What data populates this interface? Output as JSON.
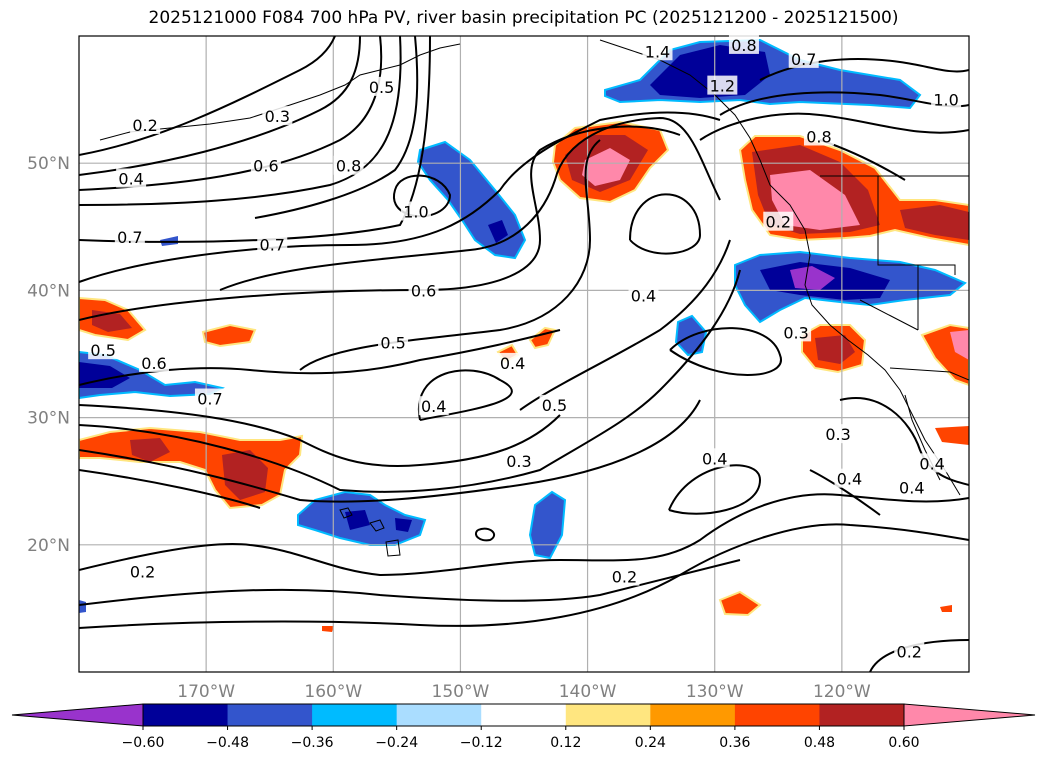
{
  "title": "2025121000 F084 700 hPa PV, river basin precipitation PC (2025121200 - 2025121500)",
  "map": {
    "lon_range": [
      -180,
      -110
    ],
    "lat_range": [
      10,
      60
    ],
    "lat_ticks": [
      {
        "value": 50,
        "label": "50°N"
      },
      {
        "value": 40,
        "label": "40°N"
      },
      {
        "value": 30,
        "label": "30°N"
      },
      {
        "value": 20,
        "label": "20°N"
      }
    ],
    "lon_ticks": [
      {
        "value": -170,
        "label": "170°W"
      },
      {
        "value": -160,
        "label": "160°W"
      },
      {
        "value": -150,
        "label": "150°W"
      },
      {
        "value": -140,
        "label": "140°W"
      },
      {
        "value": -130,
        "label": "130°W"
      },
      {
        "value": -120,
        "label": "120°W"
      }
    ],
    "gridlines": true
  },
  "colorbar": {
    "ticks": [
      "−0.60",
      "−0.48",
      "−0.36",
      "−0.24",
      "−0.12",
      "0.12",
      "0.24",
      "0.36",
      "0.48",
      "0.60"
    ],
    "colors": [
      "#9933cc",
      "#000099",
      "#3355cc",
      "#00bbff",
      "#aaddff",
      "#ffffff",
      "#ffe680",
      "#ff9900",
      "#ff4400",
      "#b22222",
      "#ff88aa"
    ],
    "extend": "both"
  },
  "fill_colors": {
    "purple": "#9933cc",
    "navy": "#000099",
    "blue": "#3355cc",
    "cyan": "#00bbff",
    "lightblue": "#aaddff",
    "yellow": "#ffe680",
    "orange": "#ff9900",
    "redorange": "#ff4400",
    "firebrick": "#b22222",
    "pink": "#ff88aa"
  },
  "contour_labels": [
    {
      "text": "1.4",
      "lon": -134.5,
      "lat": 58.8
    },
    {
      "text": "1.2",
      "lon": -129.4,
      "lat": 56.1
    },
    {
      "text": "0.8",
      "lon": -127.7,
      "lat": 59.3
    },
    {
      "text": "0.7",
      "lon": -123.0,
      "lat": 58.2
    },
    {
      "text": "1.0",
      "lon": -111.8,
      "lat": 55.0
    },
    {
      "text": "0.8",
      "lon": -121.8,
      "lat": 52.1
    },
    {
      "text": "0.5",
      "lon": -156.2,
      "lat": 56.0
    },
    {
      "text": "0.3",
      "lon": -164.4,
      "lat": 53.7
    },
    {
      "text": "0.2",
      "lon": -174.8,
      "lat": 53.0
    },
    {
      "text": "0.6",
      "lon": -165.3,
      "lat": 49.8
    },
    {
      "text": "0.8",
      "lon": -158.8,
      "lat": 49.8
    },
    {
      "text": "0.4",
      "lon": -175.9,
      "lat": 48.8
    },
    {
      "text": "1.0",
      "lon": -153.5,
      "lat": 46.2
    },
    {
      "text": "0.7",
      "lon": -176.0,
      "lat": 44.2
    },
    {
      "text": "0.7",
      "lon": -164.8,
      "lat": 43.6
    },
    {
      "text": "0.2",
      "lon": -125.0,
      "lat": 45.4
    },
    {
      "text": "0.6",
      "lon": -152.9,
      "lat": 40.0
    },
    {
      "text": "0.4",
      "lon": -135.6,
      "lat": 39.6
    },
    {
      "text": "0.3",
      "lon": -123.6,
      "lat": 36.7
    },
    {
      "text": "0.5",
      "lon": -178.1,
      "lat": 35.3
    },
    {
      "text": "0.6",
      "lon": -174.1,
      "lat": 34.3
    },
    {
      "text": "0.5",
      "lon": -155.3,
      "lat": 35.9
    },
    {
      "text": "0.4",
      "lon": -145.9,
      "lat": 34.3
    },
    {
      "text": "0.7",
      "lon": -169.7,
      "lat": 31.5
    },
    {
      "text": "0.4",
      "lon": -152.1,
      "lat": 30.9
    },
    {
      "text": "0.5",
      "lon": -142.6,
      "lat": 31.0
    },
    {
      "text": "0.3",
      "lon": -120.3,
      "lat": 28.7
    },
    {
      "text": "0.3",
      "lon": -145.4,
      "lat": 26.6
    },
    {
      "text": "0.4",
      "lon": -130.0,
      "lat": 26.8
    },
    {
      "text": "0.4",
      "lon": -119.4,
      "lat": 25.2
    },
    {
      "text": "0.4",
      "lon": -114.5,
      "lat": 24.5
    },
    {
      "text": "0.4",
      "lon": -112.9,
      "lat": 26.4
    },
    {
      "text": "0.2",
      "lon": -175.0,
      "lat": 17.9
    },
    {
      "text": "0.2",
      "lon": -137.1,
      "lat": 17.5
    },
    {
      "text": "0.2",
      "lon": -114.7,
      "lat": 11.6
    }
  ]
}
